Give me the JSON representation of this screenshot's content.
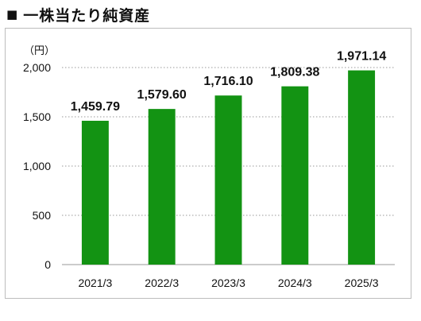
{
  "page": {
    "title_marker": "■",
    "title": "一株当たり純資産",
    "unit": "（円）"
  },
  "colors": {
    "bar": "#139313",
    "grid": "#9a9a9a",
    "axis": "#9a9a9a",
    "text": "#111111"
  },
  "chart_data": {
    "type": "bar",
    "title": "一株当たり純資産",
    "categories": [
      "2021/3",
      "2022/3",
      "2023/3",
      "2024/3",
      "2025/3"
    ],
    "values": [
      1459.79,
      1579.6,
      1716.1,
      1809.38,
      1971.14
    ],
    "value_labels": [
      "1,459.79",
      "1,579.60",
      "1,716.10",
      "1,809.38",
      "1,971.14"
    ],
    "xlabel": "",
    "ylabel": "（円）",
    "ylim": [
      0,
      2000
    ],
    "yticks": [
      0,
      500,
      1000,
      1500,
      2000
    ],
    "ytick_labels": [
      "0",
      "500",
      "1,000",
      "1,500",
      "2,000"
    ],
    "grid": true,
    "grid_style": "dotted",
    "legend": "none"
  }
}
